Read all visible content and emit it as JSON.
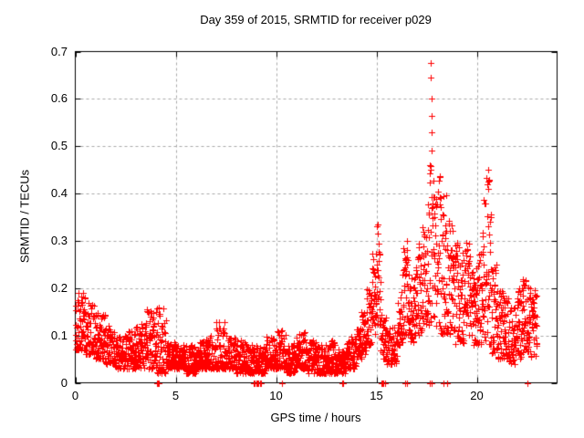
{
  "figure": {
    "title": "Day 359 of 2015, SRMTID for receiver p029",
    "background_color": "#ffffff",
    "text_color": "#000000",
    "border_color": "#000000"
  },
  "chart_data": {
    "type": "scatter",
    "title": "Day 359 of 2015, SRMTID for receiver p029",
    "xlabel": "GPS time / hours",
    "ylabel": "SRMTID / TECUs",
    "xlim": [
      0,
      24
    ],
    "ylim": [
      0,
      0.7
    ],
    "x_ticks": [
      0,
      5,
      10,
      15,
      20
    ],
    "x_tick_labels": [
      "0",
      "5",
      "10",
      "15",
      "20"
    ],
    "y_ticks": [
      0,
      0.1,
      0.2,
      0.3,
      0.4,
      0.5,
      0.6,
      0.7
    ],
    "y_tick_labels": [
      "0",
      "0.1",
      "0.2",
      "0.3",
      "0.4",
      "0.5",
      "0.6",
      "0.7"
    ],
    "grid": true,
    "grid_color": "#a8a8a8",
    "marker": "plus",
    "marker_color": "#ff0000",
    "marker_size_px": 7,
    "sample_interval_hours": 0.0083333,
    "band_envelope": [
      [
        0.0,
        0.5,
        0.07,
        0.19
      ],
      [
        0.5,
        1.0,
        0.06,
        0.17
      ],
      [
        1.0,
        1.5,
        0.05,
        0.15
      ],
      [
        1.5,
        2.0,
        0.04,
        0.12
      ],
      [
        2.0,
        2.5,
        0.03,
        0.1
      ],
      [
        2.5,
        3.0,
        0.03,
        0.11
      ],
      [
        3.0,
        3.5,
        0.03,
        0.14
      ],
      [
        3.5,
        4.0,
        0.03,
        0.16
      ],
      [
        4.0,
        4.5,
        0.02,
        0.16
      ],
      [
        4.5,
        5.0,
        0.03,
        0.09
      ],
      [
        5.0,
        5.5,
        0.03,
        0.08
      ],
      [
        5.5,
        6.0,
        0.02,
        0.08
      ],
      [
        6.0,
        6.5,
        0.03,
        0.09
      ],
      [
        6.5,
        7.0,
        0.03,
        0.1
      ],
      [
        7.0,
        7.5,
        0.03,
        0.13
      ],
      [
        7.5,
        8.0,
        0.03,
        0.1
      ],
      [
        8.0,
        8.5,
        0.02,
        0.09
      ],
      [
        8.5,
        9.0,
        0.02,
        0.08
      ],
      [
        9.0,
        9.5,
        0.02,
        0.08
      ],
      [
        9.5,
        10.0,
        0.03,
        0.1
      ],
      [
        10.0,
        10.5,
        0.03,
        0.11
      ],
      [
        10.5,
        11.0,
        0.02,
        0.09
      ],
      [
        11.0,
        11.5,
        0.03,
        0.11
      ],
      [
        11.5,
        12.0,
        0.02,
        0.09
      ],
      [
        12.0,
        12.5,
        0.02,
        0.08
      ],
      [
        12.5,
        13.0,
        0.02,
        0.09
      ],
      [
        13.0,
        13.5,
        0.02,
        0.07
      ],
      [
        13.5,
        14.0,
        0.03,
        0.1
      ],
      [
        14.0,
        14.25,
        0.05,
        0.12
      ],
      [
        14.25,
        14.5,
        0.06,
        0.15
      ],
      [
        14.5,
        14.75,
        0.08,
        0.2
      ],
      [
        14.75,
        15.0,
        0.1,
        0.28
      ],
      [
        15.0,
        15.2,
        0.12,
        0.34
      ],
      [
        15.2,
        15.5,
        0.05,
        0.15
      ],
      [
        15.5,
        16.0,
        0.04,
        0.12
      ],
      [
        16.0,
        16.3,
        0.08,
        0.2
      ],
      [
        16.3,
        16.6,
        0.1,
        0.3
      ],
      [
        16.6,
        17.0,
        0.08,
        0.25
      ],
      [
        17.0,
        17.3,
        0.1,
        0.3
      ],
      [
        17.3,
        17.6,
        0.12,
        0.38
      ],
      [
        17.6,
        17.9,
        0.12,
        0.47
      ],
      [
        17.9,
        18.2,
        0.12,
        0.45
      ],
      [
        18.2,
        18.5,
        0.1,
        0.4
      ],
      [
        18.5,
        18.8,
        0.1,
        0.35
      ],
      [
        18.8,
        19.1,
        0.08,
        0.3
      ],
      [
        19.1,
        19.4,
        0.08,
        0.28
      ],
      [
        19.4,
        19.7,
        0.1,
        0.3
      ],
      [
        19.7,
        20.0,
        0.08,
        0.25
      ],
      [
        20.0,
        20.3,
        0.08,
        0.28
      ],
      [
        20.3,
        20.7,
        0.08,
        0.45
      ],
      [
        20.7,
        21.0,
        0.06,
        0.25
      ],
      [
        21.0,
        21.3,
        0.05,
        0.2
      ],
      [
        21.3,
        21.6,
        0.05,
        0.18
      ],
      [
        21.6,
        22.0,
        0.04,
        0.16
      ],
      [
        22.0,
        22.3,
        0.05,
        0.2
      ],
      [
        22.3,
        22.6,
        0.06,
        0.22
      ],
      [
        22.6,
        23.0,
        0.05,
        0.2
      ]
    ],
    "outliers": [
      [
        17.72,
        0.675
      ],
      [
        17.72,
        0.645
      ],
      [
        17.74,
        0.6
      ],
      [
        17.73,
        0.565
      ],
      [
        17.75,
        0.53
      ],
      [
        17.73,
        0.49
      ],
      [
        15.05,
        0.335
      ],
      [
        15.07,
        0.315
      ],
      [
        16.5,
        0.3
      ],
      [
        16.52,
        0.28
      ],
      [
        20.55,
        0.45
      ],
      [
        20.6,
        0.43
      ],
      [
        20.58,
        0.41
      ]
    ],
    "zero_line_points": [
      4.05,
      4.1,
      4.15,
      8.9,
      8.95,
      9.0,
      9.05,
      9.1,
      9.2,
      9.25,
      10.3,
      13.3,
      13.35,
      15.25,
      15.3,
      15.35,
      15.45,
      16.45,
      16.5,
      17.65,
      17.75,
      18.35,
      18.5,
      22.5
    ]
  }
}
